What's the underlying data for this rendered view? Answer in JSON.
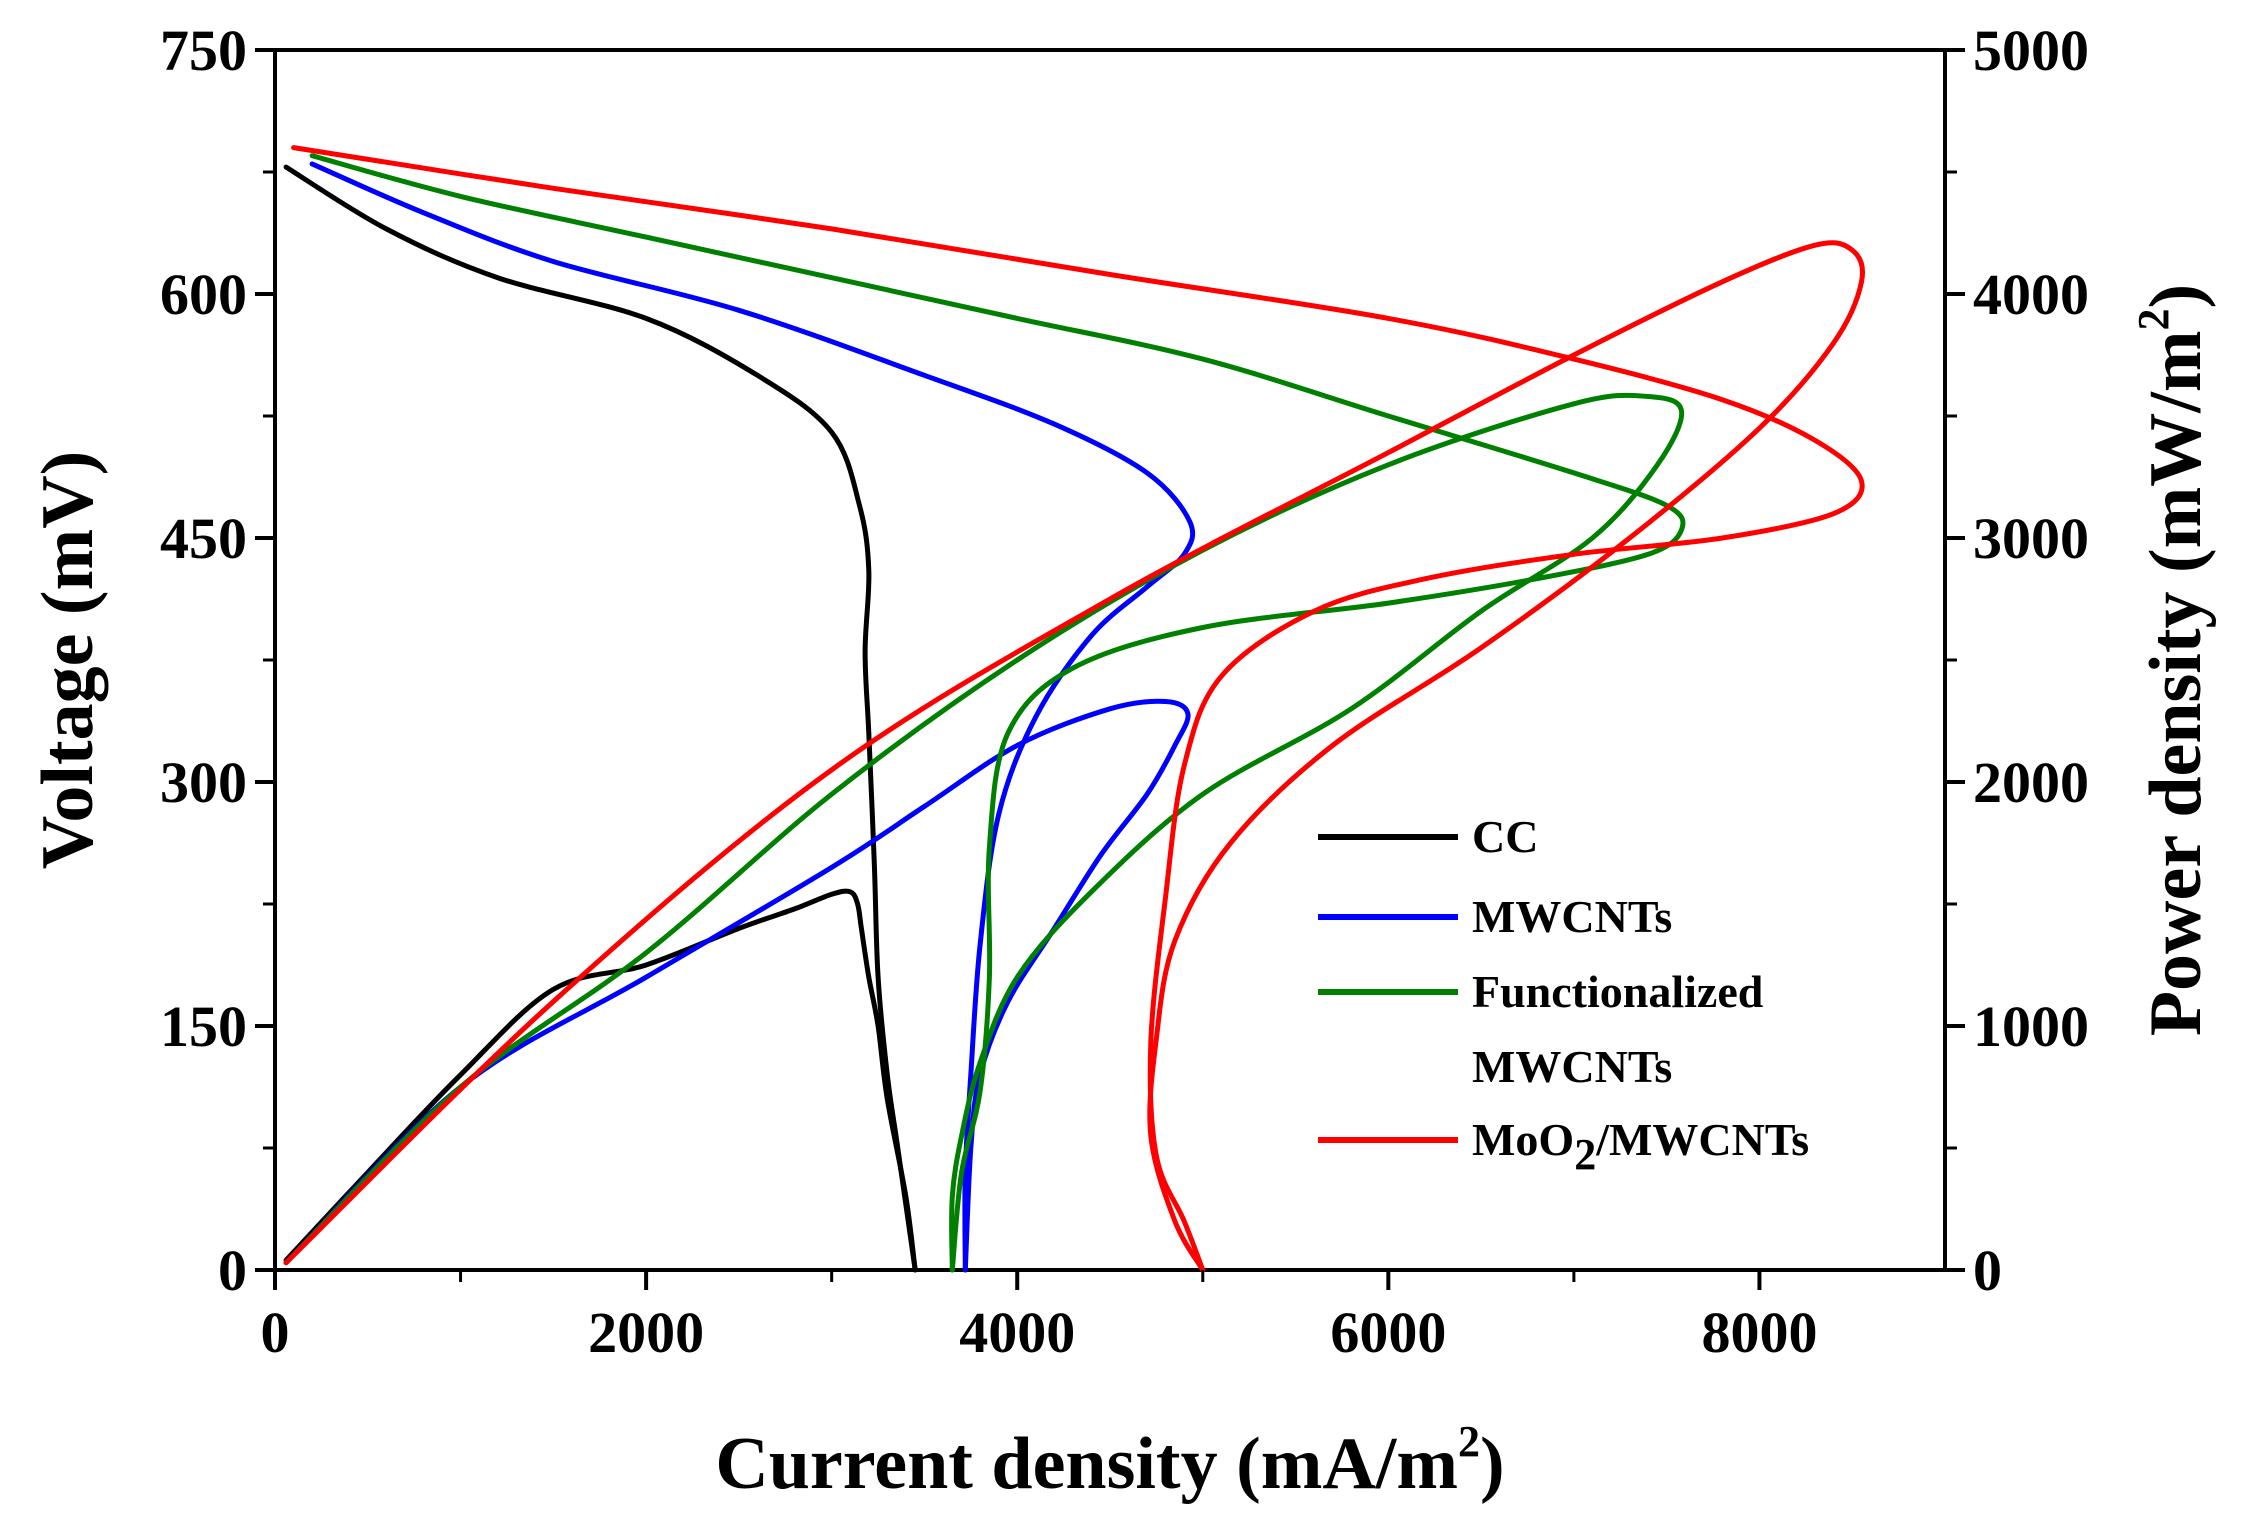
{
  "chart_data": {
    "type": "line",
    "xlabel": {
      "main": "Current density (mA/m",
      "sup": "2",
      "tail": ")"
    },
    "ylabel_left": "Voltage (mV)",
    "ylabel_right": {
      "main": "Power density (mW/m",
      "sup": "2",
      "tail": ")"
    },
    "xlim": [
      0,
      9000
    ],
    "ylim_left": [
      0,
      750
    ],
    "ylim_right": [
      0,
      5000
    ],
    "x_ticks": [
      0,
      2000,
      4000,
      6000,
      8000
    ],
    "y_left_ticks": [
      0,
      150,
      300,
      450,
      600,
      750
    ],
    "y_right_ticks": [
      0,
      1000,
      2000,
      3000,
      4000,
      5000
    ],
    "grid": false,
    "legend_position": "lower-right",
    "legend": [
      {
        "label": "CC",
        "color": "#000000"
      },
      {
        "label": "MWCNTs",
        "color": "#0000ff"
      },
      {
        "label": "Functionalized",
        "label2": "MWCNTs",
        "color": "#008000"
      },
      {
        "label": "MoO",
        "sub": "2",
        "tail": "/MWCNTs",
        "color": "#ff0000"
      }
    ],
    "series": [
      {
        "name": "CC",
        "color": "#000000",
        "polarization_voltage_mV": [
          [
            60,
            678
          ],
          [
            600,
            640
          ],
          [
            1200,
            610
          ],
          [
            2000,
            585
          ],
          [
            2600,
            550
          ],
          [
            3000,
            515
          ],
          [
            3150,
            470
          ],
          [
            3200,
            430
          ],
          [
            3180,
            380
          ],
          [
            3200,
            330
          ],
          [
            3230,
            250
          ],
          [
            3250,
            180
          ],
          [
            3300,
            120
          ],
          [
            3350,
            80
          ],
          [
            3400,
            40
          ],
          [
            3450,
            0
          ]
        ],
        "power_density_mW_m2": [
          [
            60,
            40
          ],
          [
            500,
            400
          ],
          [
            1000,
            800
          ],
          [
            1500,
            1150
          ],
          [
            2000,
            1250
          ],
          [
            2500,
            1400
          ],
          [
            2800,
            1480
          ],
          [
            3000,
            1540
          ],
          [
            3100,
            1550
          ],
          [
            3140,
            1500
          ],
          [
            3160,
            1400
          ],
          [
            3200,
            1200
          ],
          [
            3250,
            1000
          ],
          [
            3300,
            700
          ],
          [
            3400,
            300
          ],
          [
            3450,
            0
          ]
        ]
      },
      {
        "name": "MWCNTs",
        "color": "#0000ff",
        "polarization_voltage_mV": [
          [
            200,
            680
          ],
          [
            800,
            650
          ],
          [
            1500,
            620
          ],
          [
            2500,
            590
          ],
          [
            3500,
            550
          ],
          [
            4200,
            520
          ],
          [
            4700,
            490
          ],
          [
            4930,
            460
          ],
          [
            4900,
            440
          ],
          [
            4700,
            420
          ],
          [
            4400,
            390
          ],
          [
            4100,
            340
          ],
          [
            3900,
            280
          ],
          [
            3800,
            200
          ],
          [
            3750,
            120
          ],
          [
            3720,
            60
          ],
          [
            3720,
            0
          ]
        ],
        "power_density_mW_m2": [
          [
            60,
            30
          ],
          [
            1000,
            750
          ],
          [
            2000,
            1200
          ],
          [
            3000,
            1650
          ],
          [
            3500,
            1900
          ],
          [
            4000,
            2150
          ],
          [
            4500,
            2300
          ],
          [
            4800,
            2330
          ],
          [
            4920,
            2280
          ],
          [
            4850,
            2150
          ],
          [
            4700,
            1950
          ],
          [
            4450,
            1700
          ],
          [
            4200,
            1400
          ],
          [
            3950,
            1100
          ],
          [
            3800,
            800
          ],
          [
            3750,
            500
          ],
          [
            3720,
            0
          ]
        ]
      },
      {
        "name": "Functionalized MWCNTs",
        "color": "#008000",
        "polarization_voltage_mV": [
          [
            200,
            685
          ],
          [
            1000,
            660
          ],
          [
            2000,
            635
          ],
          [
            3000,
            610
          ],
          [
            4000,
            585
          ],
          [
            5000,
            560
          ],
          [
            6000,
            525
          ],
          [
            7000,
            490
          ],
          [
            7500,
            470
          ],
          [
            7580,
            455
          ],
          [
            7400,
            440
          ],
          [
            6800,
            425
          ],
          [
            6000,
            410
          ],
          [
            5000,
            395
          ],
          [
            4300,
            370
          ],
          [
            3950,
            330
          ],
          [
            3850,
            260
          ],
          [
            3850,
            180
          ],
          [
            3800,
            110
          ],
          [
            3700,
            60
          ],
          [
            3650,
            0
          ]
        ],
        "power_density_mW_m2": [
          [
            60,
            30
          ],
          [
            1000,
            750
          ],
          [
            2000,
            1300
          ],
          [
            3000,
            1950
          ],
          [
            4000,
            2500
          ],
          [
            5000,
            2950
          ],
          [
            6000,
            3300
          ],
          [
            7000,
            3550
          ],
          [
            7400,
            3580
          ],
          [
            7580,
            3520
          ],
          [
            7450,
            3300
          ],
          [
            7100,
            3000
          ],
          [
            6500,
            2700
          ],
          [
            5800,
            2300
          ],
          [
            5000,
            1950
          ],
          [
            4400,
            1550
          ],
          [
            4000,
            1200
          ],
          [
            3800,
            850
          ],
          [
            3700,
            550
          ],
          [
            3650,
            300
          ],
          [
            3650,
            0
          ]
        ]
      },
      {
        "name": "MoO2/MWCNTs",
        "color": "#ff0000",
        "polarization_voltage_mV": [
          [
            100,
            690
          ],
          [
            1500,
            665
          ],
          [
            3000,
            640
          ],
          [
            4500,
            612
          ],
          [
            6000,
            585
          ],
          [
            7000,
            560
          ],
          [
            7800,
            535
          ],
          [
            8300,
            510
          ],
          [
            8550,
            485
          ],
          [
            8400,
            465
          ],
          [
            7800,
            450
          ],
          [
            7000,
            440
          ],
          [
            6200,
            425
          ],
          [
            5600,
            405
          ],
          [
            5100,
            365
          ],
          [
            4900,
            310
          ],
          [
            4800,
            230
          ],
          [
            4720,
            140
          ],
          [
            4750,
            70
          ],
          [
            4900,
            30
          ],
          [
            5000,
            0
          ]
        ],
        "power_density_mW_m2": [
          [
            60,
            30
          ],
          [
            1500,
            1100
          ],
          [
            3000,
            2050
          ],
          [
            4500,
            2750
          ],
          [
            6000,
            3350
          ],
          [
            7000,
            3750
          ],
          [
            7800,
            4050
          ],
          [
            8300,
            4200
          ],
          [
            8500,
            4180
          ],
          [
            8550,
            4050
          ],
          [
            8400,
            3800
          ],
          [
            8000,
            3450
          ],
          [
            7300,
            3000
          ],
          [
            6500,
            2550
          ],
          [
            5700,
            2150
          ],
          [
            5150,
            1750
          ],
          [
            4850,
            1350
          ],
          [
            4750,
            950
          ],
          [
            4720,
            550
          ],
          [
            4850,
            200
          ],
          [
            5000,
            0
          ]
        ]
      }
    ]
  }
}
